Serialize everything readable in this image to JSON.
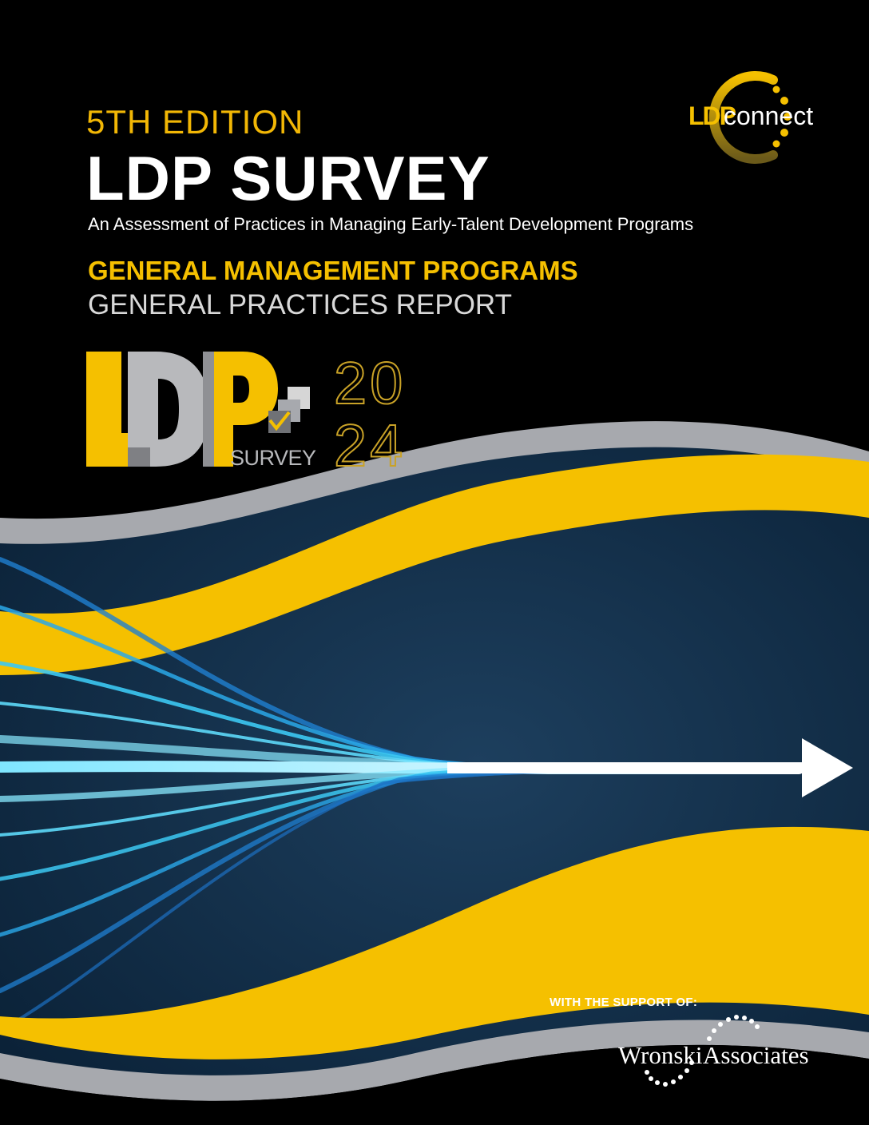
{
  "cover": {
    "edition": "5TH EDITION",
    "title": "LDP SURVEY",
    "subtitle": "An Assessment of Practices in Managing Early-Talent Development Programs",
    "program": "GENERAL MANAGEMENT PROGRAMS",
    "report": "GENERAL PRACTICES REPORT"
  },
  "ldpconnect_logo": {
    "icon": "ldpconnect-ring-logo",
    "letters": "LDP",
    "word": "connect"
  },
  "survey_logo": {
    "letters": "LDP",
    "word": "SURVEY",
    "year_top": "20",
    "year_bottom": "24",
    "icon": "checkbox-stack-icon"
  },
  "footer": {
    "support_label": "WITH THE SUPPORT OF:",
    "partner_left": "Wronski",
    "partner_right": "Associates"
  },
  "colors": {
    "background": "#000000",
    "accent_yellow": "#f5c000",
    "wave_gray": "#a7a9ae",
    "navy": "#0f2a44",
    "light_blue": "#33c6f0"
  }
}
